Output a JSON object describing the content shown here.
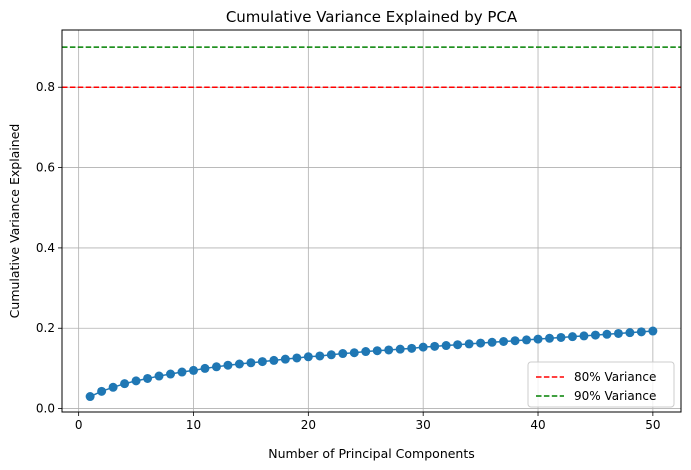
{
  "chart_data": {
    "type": "line",
    "title": "Cumulative Variance Explained by PCA",
    "xlabel": "Number of Principal Components",
    "ylabel": "Cumulative Variance Explained",
    "xlim": [
      -1.45,
      52.45
    ],
    "ylim": [
      -0.0085,
      0.9425
    ],
    "xticks": [
      0,
      10,
      20,
      30,
      40,
      50
    ],
    "yticks": [
      0.0,
      0.2,
      0.4,
      0.6,
      0.8
    ],
    "ytick_labels": [
      "0.0",
      "0.2",
      "0.4",
      "0.6",
      "0.8"
    ],
    "grid": true,
    "legend_position": "lower-right",
    "series": [
      {
        "color": "#1f77b4",
        "marker": "circle",
        "x": [
          1,
          2,
          3,
          4,
          5,
          6,
          7,
          8,
          9,
          10,
          11,
          12,
          13,
          14,
          15,
          16,
          17,
          18,
          19,
          20,
          21,
          22,
          23,
          24,
          25,
          26,
          27,
          28,
          29,
          30,
          31,
          32,
          33,
          34,
          35,
          36,
          37,
          38,
          39,
          40,
          41,
          42,
          43,
          44,
          45,
          46,
          47,
          48,
          49,
          50
        ],
        "y": [
          0.03,
          0.043,
          0.053,
          0.062,
          0.069,
          0.075,
          0.081,
          0.086,
          0.091,
          0.095,
          0.1,
          0.104,
          0.108,
          0.111,
          0.114,
          0.117,
          0.12,
          0.123,
          0.126,
          0.129,
          0.131,
          0.134,
          0.137,
          0.139,
          0.142,
          0.144,
          0.146,
          0.148,
          0.15,
          0.153,
          0.155,
          0.157,
          0.159,
          0.161,
          0.163,
          0.165,
          0.167,
          0.169,
          0.171,
          0.173,
          0.175,
          0.177,
          0.179,
          0.181,
          0.183,
          0.185,
          0.187,
          0.189,
          0.191,
          0.193
        ]
      }
    ],
    "reference_lines": [
      {
        "name": "80% Variance",
        "y": 0.8,
        "color": "#ff0000",
        "style": "dashed"
      },
      {
        "name": "90% Variance",
        "y": 0.9,
        "color": "#008000",
        "style": "dashed"
      }
    ]
  }
}
